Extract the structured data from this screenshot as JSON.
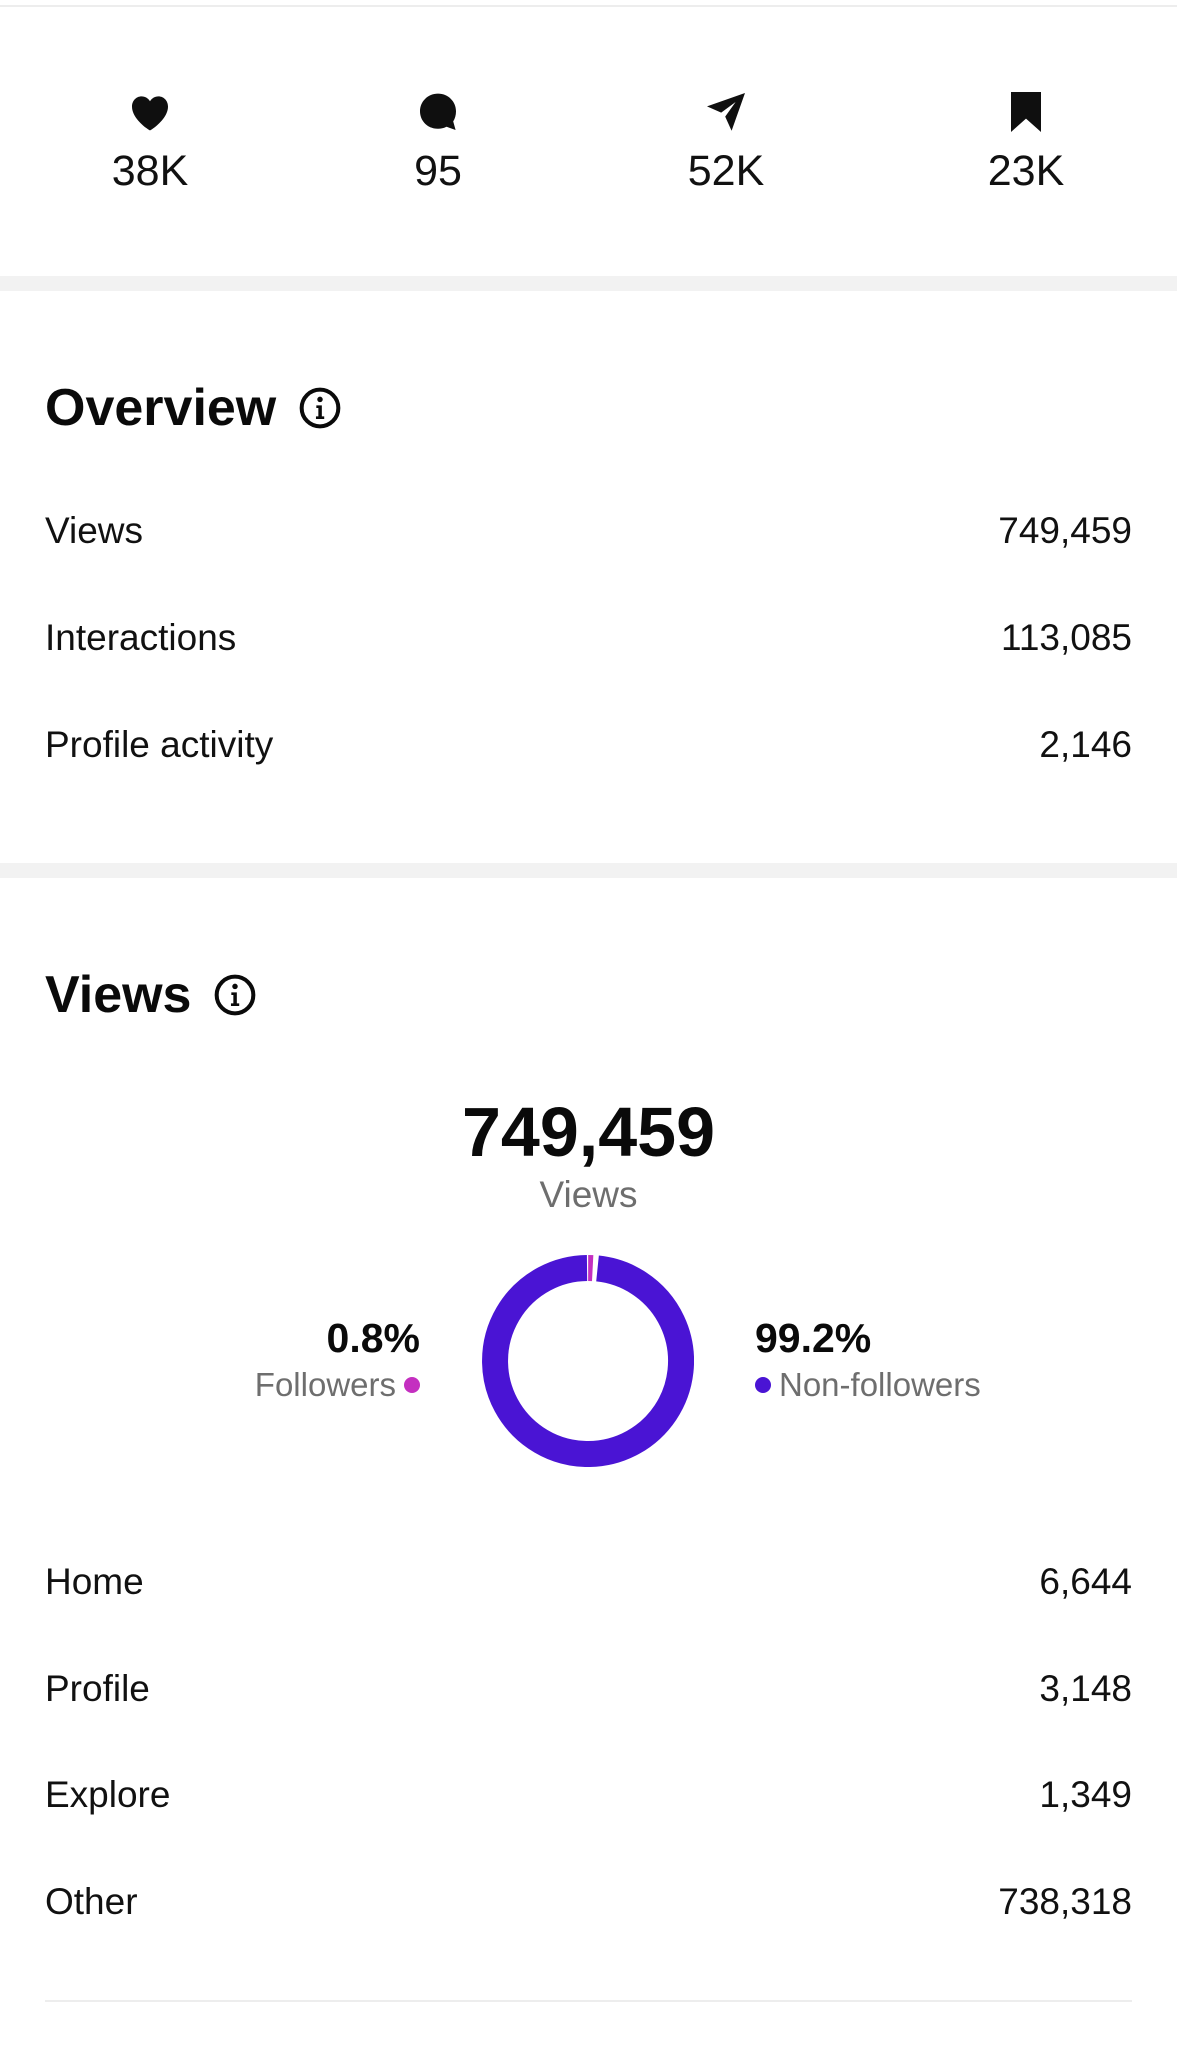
{
  "stats": [
    {
      "icon": "heart-icon",
      "value": "38K"
    },
    {
      "icon": "comment-icon",
      "value": "95"
    },
    {
      "icon": "share-icon",
      "value": "52K"
    },
    {
      "icon": "bookmark-icon",
      "value": "23K"
    }
  ],
  "overview": {
    "title": "Overview",
    "rows": [
      {
        "label": "Views",
        "value": "749,459"
      },
      {
        "label": "Interactions",
        "value": "113,085"
      },
      {
        "label": "Profile activity",
        "value": "2,146"
      }
    ]
  },
  "views": {
    "title": "Views",
    "total": "749,459",
    "total_caption": "Views",
    "followers": {
      "percent": "0.8%",
      "label": "Followers",
      "color": "#c42fc0",
      "fraction": 0.008
    },
    "non_followers": {
      "percent": "99.2%",
      "label": "Non-followers",
      "color": "#4a14d4",
      "fraction": 0.992
    },
    "sources": [
      {
        "label": "Home",
        "value": "6,644"
      },
      {
        "label": "Profile",
        "value": "3,148"
      },
      {
        "label": "Explore",
        "value": "1,349"
      },
      {
        "label": "Other",
        "value": "738,318"
      }
    ]
  }
}
